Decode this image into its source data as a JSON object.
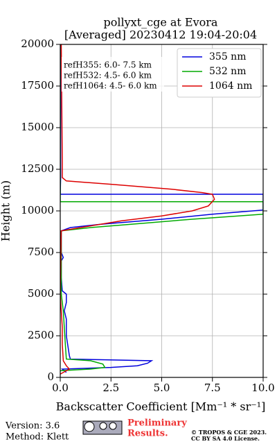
{
  "chart_data": {
    "type": "line",
    "title": [
      "pollyxt_cge at Evora",
      "[Averaged] 20230412 19:04-20:04"
    ],
    "xlabel": "Backscatter Coefficient [Mm⁻¹ * sr⁻¹]",
    "ylabel": "Height (m)",
    "xlim": [
      0,
      10
    ],
    "ylim": [
      0,
      20000
    ],
    "xticks": [
      {
        "value": 0,
        "label": "0.0"
      },
      2.5,
      {
        "value": 5,
        "label": "5.0"
      },
      7.5,
      {
        "value": 10,
        "label": "10.0"
      }
    ],
    "yticks": [
      0,
      2500,
      5000,
      7500,
      10000,
      12500,
      15000,
      17500,
      20000
    ],
    "grid": true,
    "legend": "upper right",
    "annotations": [
      "refH355:  6.0- 7.5 km",
      "refH532:  4.5- 6.0 km",
      "refH1064:  4.5- 6.0 km"
    ],
    "series": [
      {
        "name": "355 nm",
        "color": "#0000dd",
        "y": [
          300,
          500,
          600,
          700,
          850,
          1000,
          1100,
          1300,
          2500,
          3500,
          4000,
          4500,
          5000,
          5200,
          6000,
          7000,
          7200,
          7500,
          8800,
          9000,
          9200,
          9500,
          9800,
          10050,
          11000,
          11000,
          12000,
          20000
        ],
        "values": [
          0.3,
          0.1,
          2.5,
          3.8,
          4.3,
          4.5,
          0.5,
          0.45,
          0.3,
          0.3,
          0.2,
          0.3,
          0.3,
          0.1,
          0.05,
          0.05,
          0.15,
          0.05,
          0.05,
          0.5,
          2.0,
          5,
          7.5,
          10,
          10,
          0,
          0.02,
          0.02
        ]
      },
      {
        "name": "532 nm",
        "color": "#00aa00",
        "y": [
          400,
          500,
          600,
          800,
          1000,
          1100,
          2000,
          3000,
          4000,
          5000,
          8800,
          9000,
          9200,
          9500,
          9800,
          10550,
          10550,
          20000
        ],
        "values": [
          0,
          1.5,
          2.2,
          2.1,
          1.5,
          0.3,
          0.25,
          0.2,
          0.15,
          0.05,
          0.05,
          1.5,
          3.5,
          6.5,
          10,
          10,
          0,
          0
        ]
      },
      {
        "name": "1064 nm",
        "color": "#dd0000",
        "y": [
          200,
          400,
          500,
          700,
          1000,
          2000,
          3000,
          4000,
          5000,
          8800,
          9000,
          9400,
          9700,
          10000,
          10300,
          10700,
          11000,
          11100,
          11300,
          11600,
          11800,
          12000,
          13000,
          20000
        ],
        "values": [
          0,
          0.3,
          0.45,
          0.3,
          0.15,
          0.1,
          0.1,
          0.05,
          0,
          0.05,
          1,
          3,
          5,
          6.5,
          7.3,
          7.6,
          7.5,
          7.0,
          5.5,
          2.5,
          0.3,
          0.1,
          0.1,
          0.05
        ]
      }
    ]
  },
  "footer": {
    "version": "Version: 3.6",
    "method": "Method: Klett",
    "preliminary": [
      "Preliminary",
      "Results."
    ],
    "license": [
      "© TROPOS & CGE 2023.",
      "CC BY SA 4.0 License."
    ]
  }
}
